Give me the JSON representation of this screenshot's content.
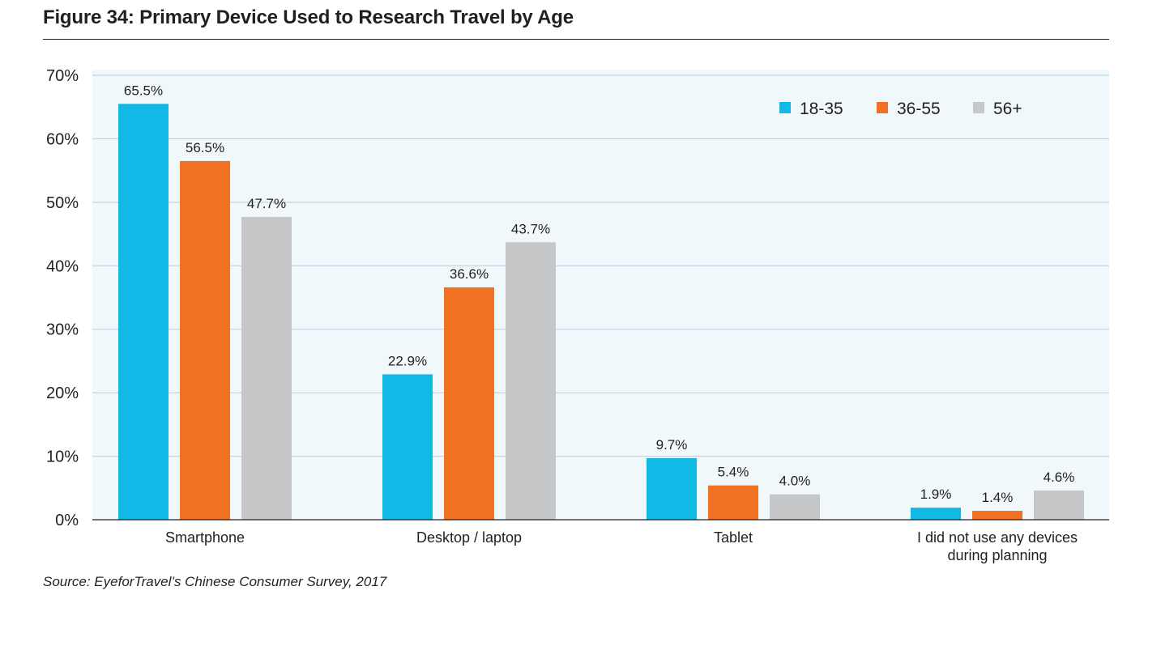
{
  "title": "Figure 34: Primary Device Used to Research Travel by Age",
  "source": "Source: EyeforTravel’s Chinese Consumer Survey, 2017",
  "colors": {
    "plot_background": "#f0f8fb",
    "gridline": "#b9cdd6",
    "axis": "#231f20"
  },
  "chart_data": {
    "type": "bar",
    "title": "Figure 34: Primary Device Used to Research Travel by Age",
    "xlabel": "",
    "ylabel": "",
    "ylim": [
      0,
      70
    ],
    "yticks": [
      0,
      10,
      20,
      30,
      40,
      50,
      60,
      70
    ],
    "ytick_labels": [
      "0%",
      "10%",
      "20%",
      "30%",
      "40%",
      "50%",
      "60%",
      "70%"
    ],
    "grid": true,
    "legend_position": "top-right",
    "categories": [
      [
        "Smartphone"
      ],
      [
        "Desktop / laptop"
      ],
      [
        "Tablet"
      ],
      [
        "I did not use any devices",
        "during planning"
      ]
    ],
    "series": [
      {
        "name": "18-35",
        "color": "#12b8e6",
        "values": [
          65.5,
          22.9,
          9.7,
          1.9
        ],
        "labels": [
          "65.5%",
          "22.9%",
          "9.7%",
          "1.9%"
        ]
      },
      {
        "name": "36-55",
        "color": "#f07122",
        "values": [
          56.5,
          36.6,
          5.4,
          1.4
        ],
        "labels": [
          "56.5%",
          "36.6%",
          "5.4%",
          "1.4%"
        ]
      },
      {
        "name": "56+",
        "color": "#c6c7c9",
        "values": [
          47.7,
          43.7,
          4.0,
          4.6
        ],
        "labels": [
          "47.7%",
          "43.7%",
          "4.0%",
          "4.6%"
        ]
      }
    ]
  }
}
